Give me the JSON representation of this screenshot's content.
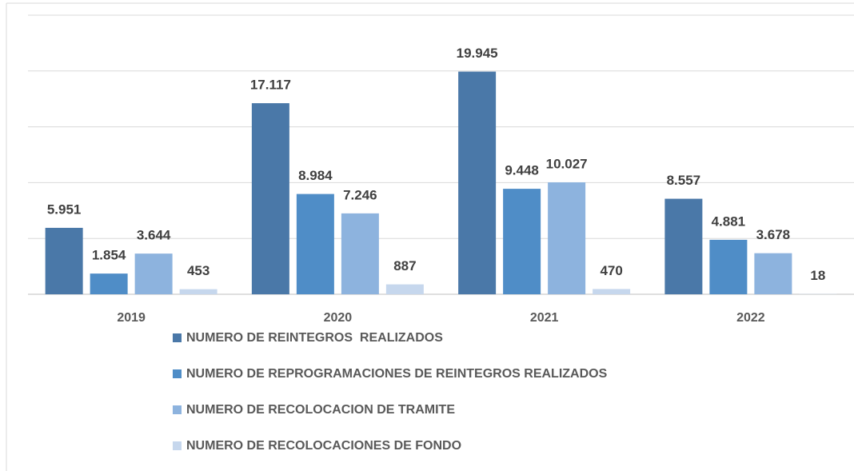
{
  "chart_data": {
    "type": "bar",
    "categories": [
      "2019",
      "2020",
      "2021",
      "2022"
    ],
    "series": [
      {
        "name": "NUMERO DE REINTEGROS  REALIZADOS",
        "color": "#4a78a8",
        "values": [
          5951,
          17117,
          19945,
          8557
        ],
        "value_labels": [
          "5.951",
          "17.117",
          "19.945",
          "8.557"
        ]
      },
      {
        "name": "NUMERO DE REPROGRAMACIONES DE REINTEGROS REALIZADOS",
        "color": "#4f8dc7",
        "values": [
          1854,
          8984,
          9448,
          4881
        ],
        "value_labels": [
          "1.854",
          "8.984",
          "9.448",
          "4.881"
        ]
      },
      {
        "name": "NUMERO DE RECOLOCACION DE TRAMITE",
        "color": "#8db3de",
        "values": [
          3644,
          7246,
          10027,
          3678
        ],
        "value_labels": [
          "3.644",
          "7.246",
          "10.027",
          "3.678"
        ]
      },
      {
        "name": "NUMERO DE RECOLOCACIONES DE FONDO",
        "color": "#c6d7ed",
        "values": [
          453,
          887,
          470,
          18
        ],
        "value_labels": [
          "453",
          "887",
          "470",
          "18"
        ]
      }
    ],
    "ylim": [
      0,
      25000
    ],
    "yticks": [
      0,
      5000,
      10000,
      15000,
      20000,
      25000
    ],
    "grid": true,
    "legend": "bottom"
  }
}
